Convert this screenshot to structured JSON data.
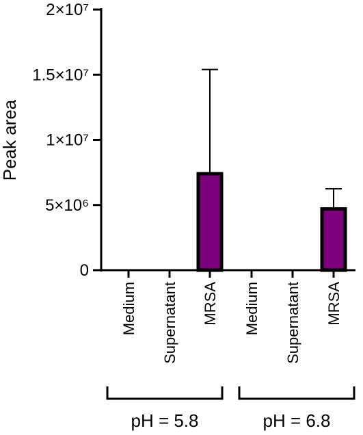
{
  "chart_data": {
    "type": "bar",
    "title": "",
    "xlabel": "",
    "ylabel": "Peak area",
    "ylim": [
      0,
      20000000
    ],
    "yticks": [
      {
        "value": 0,
        "label": "0"
      },
      {
        "value": 5000000,
        "label": "5×10⁶"
      },
      {
        "value": 10000000,
        "label": "1×10⁷"
      },
      {
        "value": 15000000,
        "label": "1.5×10⁷"
      },
      {
        "value": 20000000,
        "label": "2×10⁷"
      }
    ],
    "categories": [
      "Medium",
      "Supernatant",
      "MRSA",
      "Medium",
      "Supernatant",
      "MRSA"
    ],
    "values": [
      0,
      0,
      7400000,
      0,
      0,
      4700000
    ],
    "error_upper": [
      0,
      0,
      15400000,
      0,
      0,
      6250000
    ],
    "groups": [
      {
        "label": "pH = 5.8",
        "categories": [
          0,
          1,
          2
        ]
      },
      {
        "label": "pH = 6.8",
        "categories": [
          3,
          4,
          5
        ]
      }
    ],
    "bar_color": "#7b007b",
    "grid": false,
    "legend": "none"
  }
}
